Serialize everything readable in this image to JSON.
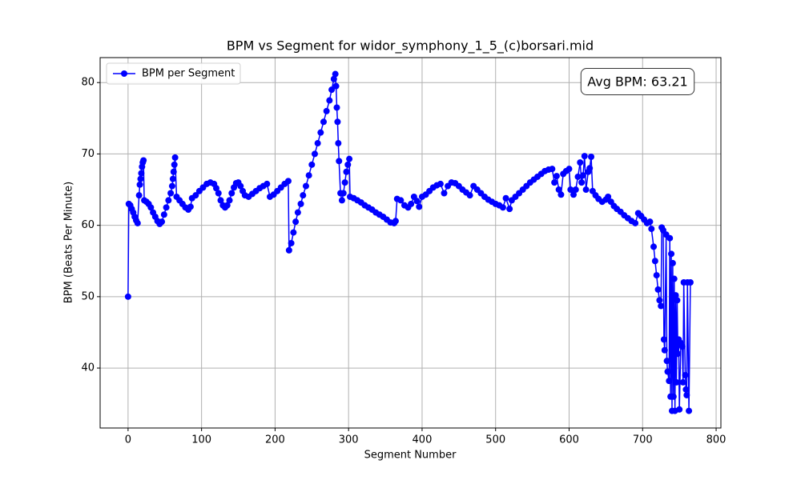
{
  "chart_data": {
    "type": "line",
    "title": "BPM vs Segment for widor_symphony_1_5_(c)borsari.mid",
    "x_label": "Segment Number",
    "y_label": "BPM (Beats Per Minute)",
    "annotation": "Avg BPM: 63.21",
    "legend": "upper left",
    "grid": true,
    "xlim": [
      -38,
      806.5
    ],
    "ylim": [
      31.6,
      83.5
    ],
    "xticks": [
      0,
      100,
      200,
      300,
      400,
      500,
      600,
      700,
      800
    ],
    "yticks": [
      40,
      50,
      60,
      70,
      80
    ],
    "x": [
      0,
      1,
      3,
      5,
      7,
      9,
      11,
      13,
      15,
      16,
      17,
      18,
      19,
      20,
      21,
      22,
      25,
      28,
      31,
      34,
      37,
      40,
      43,
      46,
      49,
      52,
      55,
      58,
      60,
      61,
      62,
      63,
      64,
      66,
      70,
      74,
      78,
      82,
      85,
      87,
      92,
      97,
      102,
      107,
      112,
      117,
      120,
      123,
      126,
      129,
      132,
      135,
      138,
      141,
      144,
      147,
      150,
      153,
      156,
      159,
      164,
      169,
      174,
      179,
      184,
      189,
      193,
      198,
      203,
      208,
      213,
      218,
      219,
      222,
      225,
      228,
      231,
      235,
      238,
      242,
      246,
      250,
      254,
      258,
      262,
      266,
      270,
      274,
      277,
      280,
      282,
      283,
      284,
      285,
      286,
      287,
      289,
      291,
      293,
      295,
      297,
      299,
      301,
      302,
      307,
      312,
      317,
      322,
      327,
      332,
      337,
      342,
      347,
      352,
      357,
      362,
      364,
      366,
      371,
      376,
      381,
      385,
      389,
      393,
      396,
      400,
      405,
      410,
      415,
      420,
      425,
      430,
      435,
      440,
      445,
      450,
      455,
      460,
      465,
      470,
      475,
      480,
      485,
      490,
      495,
      500,
      505,
      510,
      514,
      519,
      522,
      527,
      532,
      537,
      542,
      547,
      552,
      557,
      562,
      567,
      572,
      577,
      580,
      583,
      586,
      589,
      592,
      596,
      600,
      602,
      606,
      609,
      612,
      615,
      617,
      619,
      621,
      623,
      626,
      628,
      630,
      632,
      636,
      640,
      645,
      650,
      653,
      657,
      661,
      665,
      670,
      675,
      680,
      685,
      690,
      694,
      698,
      702,
      706,
      710,
      712,
      715,
      717,
      719,
      721,
      723,
      725,
      726,
      728,
      729,
      730,
      732,
      733,
      734,
      736,
      737,
      738,
      739,
      740,
      741,
      742,
      743,
      744,
      745,
      746,
      747,
      748,
      749,
      750,
      752,
      754,
      755,
      756,
      758,
      759,
      760,
      761,
      763,
      765
    ],
    "series": [
      {
        "name": "BPM per Segment",
        "color": "#0000ff",
        "values": [
          50,
          63,
          62.8,
          62.3,
          61.8,
          61.2,
          60.7,
          60.3,
          64.2,
          65.7,
          66.5,
          67.3,
          68.2,
          68.8,
          69.1,
          63.5,
          63.3,
          63,
          62.5,
          61.8,
          61.2,
          60.6,
          60.2,
          60.5,
          61.5,
          62.5,
          63.5,
          64.5,
          65.5,
          66.5,
          67.5,
          68.5,
          69.5,
          64,
          63.5,
          63,
          62.5,
          62.2,
          62.6,
          63.8,
          64.2,
          64.8,
          65.3,
          65.8,
          66,
          65.8,
          65.2,
          64.5,
          63.5,
          62.8,
          62.5,
          62.8,
          63.5,
          64.5,
          65.3,
          65.9,
          66,
          65.5,
          64.8,
          64.2,
          64,
          64.4,
          64.8,
          65.2,
          65.5,
          65.8,
          64,
          64.3,
          64.8,
          65.3,
          65.8,
          66.2,
          56.5,
          57.5,
          59,
          60.5,
          61.8,
          63,
          64.2,
          65.5,
          67,
          68.5,
          70,
          71.5,
          73,
          74.5,
          76,
          77.5,
          79,
          80.5,
          81.2,
          79.5,
          76.5,
          74.5,
          71.5,
          69,
          64.5,
          63.5,
          64.5,
          66,
          67.5,
          68.5,
          69.3,
          64,
          63.8,
          63.5,
          63.2,
          62.8,
          62.5,
          62.2,
          61.8,
          61.5,
          61.2,
          60.8,
          60.4,
          60.3,
          60.6,
          63.7,
          63.5,
          62.8,
          62.5,
          63,
          64,
          63.4,
          62.6,
          64,
          64.3,
          64.8,
          65.3,
          65.6,
          65.8,
          64.5,
          65.5,
          66,
          65.9,
          65.5,
          65,
          64.6,
          64.2,
          65.5,
          65,
          64.5,
          64,
          63.6,
          63.3,
          63,
          62.8,
          62.5,
          63.8,
          62.3,
          63.5,
          64,
          64.5,
          65,
          65.5,
          66,
          66.4,
          66.8,
          67.2,
          67.6,
          67.8,
          67.9,
          66,
          66.9,
          65,
          64.3,
          67.2,
          67.6,
          67.9,
          65,
          64.3,
          65,
          66.8,
          68.8,
          66,
          67,
          69.7,
          65,
          67.5,
          68,
          69.6,
          64.8,
          64.2,
          63.7,
          63.3,
          63.6,
          64,
          63.3,
          62.7,
          62.3,
          61.9,
          61.4,
          61,
          60.6,
          60.3,
          61.7,
          61.3,
          60.8,
          60.3,
          60.5,
          59.5,
          57,
          55,
          53,
          51,
          49.5,
          48.7,
          59.7,
          59.3,
          44,
          42.5,
          58.7,
          41,
          39.5,
          38.2,
          58.2,
          36,
          56,
          34,
          54.7,
          36,
          52.5,
          34,
          50.2,
          38,
          49.5,
          42,
          44,
          34.2,
          43.5,
          43,
          38,
          52,
          39,
          37,
          36.2,
          52,
          34,
          52
        ]
      }
    ]
  }
}
